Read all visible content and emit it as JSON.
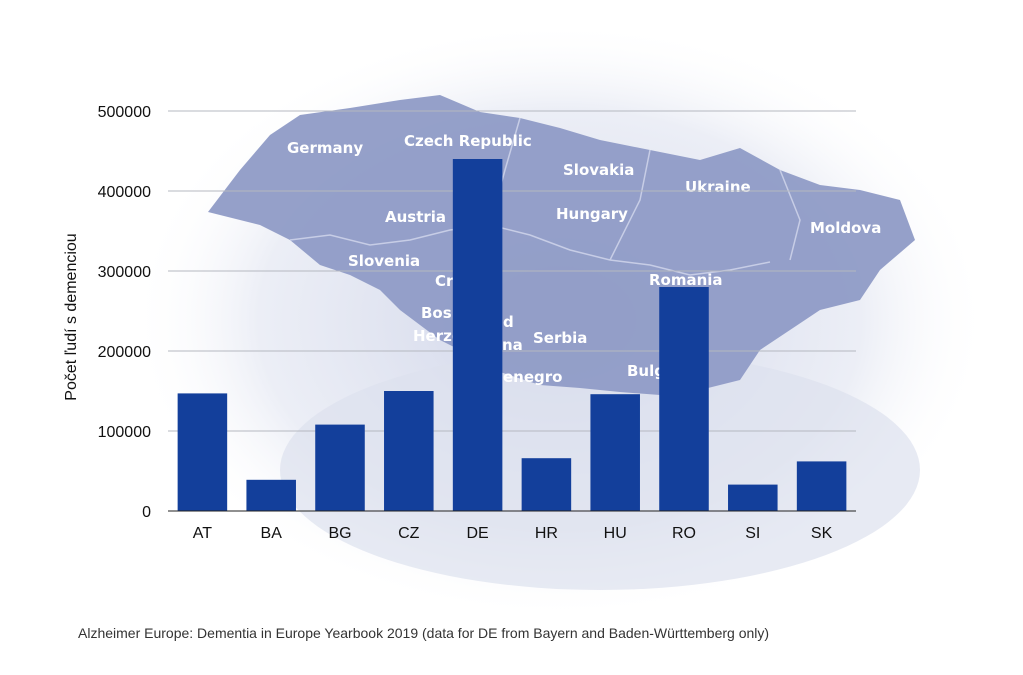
{
  "map_labels": [
    "Germany",
    "Czech Republic",
    "Slovakia",
    "Ukraine",
    "Austria",
    "Hungary",
    "Moldova",
    "Slovenia",
    "Cr",
    "Romania",
    "Bos",
    "d",
    "Herze",
    "na",
    "Serbia",
    "enegro",
    "Bulg"
  ],
  "source_note": "Alzheimer Europe: Dementia in Europe Yearbook 2019 (data for DE from Bayern and Baden-Württemberg only)",
  "colors": {
    "bar": "#133f9b",
    "map": "#8f9bc6",
    "map_light": "#c7cde6",
    "grid": "#b5b8c0"
  },
  "chart_data": {
    "type": "bar",
    "title": "",
    "xlabel": "",
    "ylabel": "Počet ľudí s demenciou",
    "categories": [
      "AT",
      "BA",
      "BG",
      "CZ",
      "DE",
      "HR",
      "HU",
      "RO",
      "SI",
      "SK"
    ],
    "values": [
      147000,
      39000,
      108000,
      150000,
      440000,
      66000,
      146000,
      280000,
      33000,
      62000
    ],
    "ylim": [
      0,
      500000
    ],
    "yticks": [
      "0",
      "100000",
      "200000",
      "300000",
      "400000",
      "500000"
    ],
    "grid": true,
    "legend": "none"
  }
}
